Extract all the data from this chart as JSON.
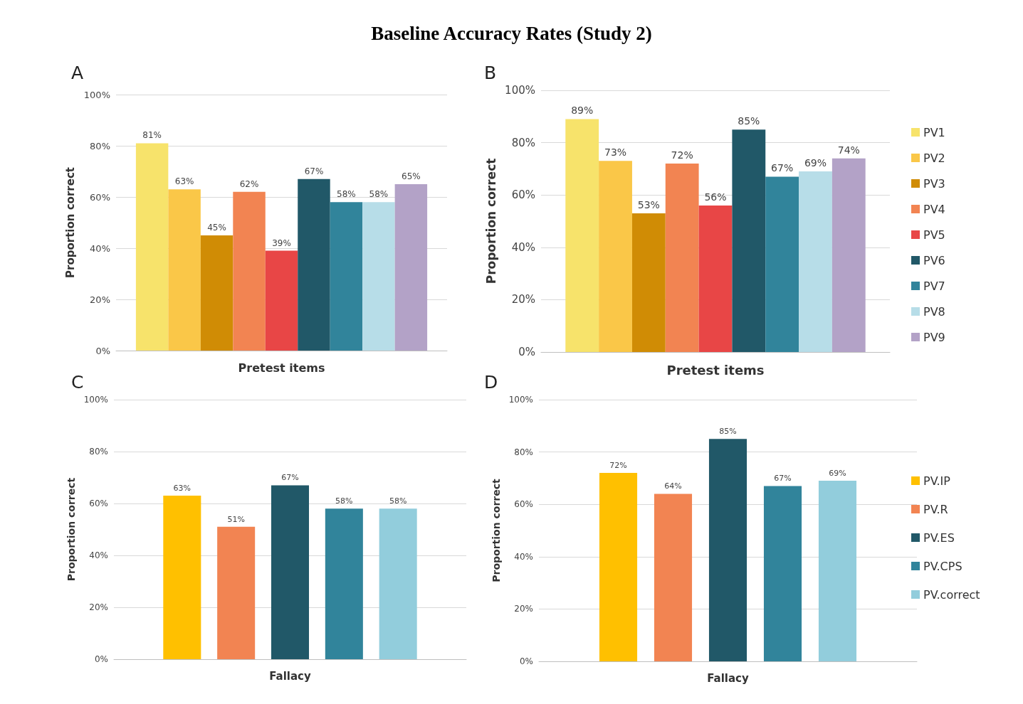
{
  "chart_data": [
    {
      "type": "bar",
      "title": "A",
      "annotations": [
        "Baseline Accuracy Rates (Study 2)"
      ],
      "xlabel": "Pretest items",
      "ylabel": "Proportion correct",
      "categories": [
        null
      ],
      "ylim": [
        0,
        100
      ],
      "yticks": [
        {
          "value": 0,
          "label": "0%"
        },
        {
          "value": 20,
          "label": "20%"
        },
        {
          "value": 40,
          "label": "40%"
        },
        {
          "value": 60,
          "label": "60%"
        },
        {
          "value": 80,
          "label": "80%"
        },
        {
          "value": 100,
          "label": "100%"
        }
      ],
      "grid": "y",
      "legend": false,
      "series": [
        {
          "color": "#f7e36b",
          "values": [
            81
          ],
          "value_labels": [
            "81%"
          ]
        },
        {
          "color": "#fac748",
          "values": [
            63
          ],
          "value_labels": [
            "63%"
          ]
        },
        {
          "color": "#d08c05",
          "values": [
            45
          ],
          "value_labels": [
            "45%"
          ]
        },
        {
          "color": "#f28452",
          "values": [
            62
          ],
          "value_labels": [
            "62%"
          ]
        },
        {
          "color": "#e84646",
          "values": [
            39
          ],
          "value_labels": [
            "39%"
          ]
        },
        {
          "color": "#215868",
          "values": [
            67
          ],
          "value_labels": [
            "67%"
          ]
        },
        {
          "color": "#31849b",
          "values": [
            58
          ],
          "value_labels": [
            "58%"
          ]
        },
        {
          "color": "#b7dde8",
          "values": [
            58
          ],
          "value_labels": [
            "58%"
          ]
        },
        {
          "color": "#b3a2c7",
          "values": [
            65
          ],
          "value_labels": [
            "65%"
          ]
        }
      ]
    },
    {
      "type": "bar",
      "title": "B",
      "xlabel": "Pretest items",
      "ylabel": "Proportion correct",
      "categories": [
        null
      ],
      "ylim": [
        0,
        100
      ],
      "yticks": [
        {
          "value": 0,
          "label": "0%"
        },
        {
          "value": 20,
          "label": "20%"
        },
        {
          "value": 40,
          "label": "40%"
        },
        {
          "value": 60,
          "label": "60%"
        },
        {
          "value": 80,
          "label": "80%"
        },
        {
          "value": 100,
          "label": "100%"
        }
      ],
      "grid": "y",
      "legend": "right",
      "series": [
        {
          "name": "PV1",
          "color": "#f7e36b",
          "values": [
            89
          ],
          "value_labels": [
            "89%"
          ]
        },
        {
          "name": "PV2",
          "color": "#fac748",
          "values": [
            73
          ],
          "value_labels": [
            "73%"
          ]
        },
        {
          "name": "PV3",
          "color": "#d08c05",
          "values": [
            53
          ],
          "value_labels": [
            "53%"
          ]
        },
        {
          "name": "PV4",
          "color": "#f28452",
          "values": [
            72
          ],
          "value_labels": [
            "72%"
          ]
        },
        {
          "name": "PV5",
          "color": "#e84646",
          "values": [
            56
          ],
          "value_labels": [
            "56%"
          ]
        },
        {
          "name": "PV6",
          "color": "#215868",
          "values": [
            85
          ],
          "value_labels": [
            "85%"
          ]
        },
        {
          "name": "PV7",
          "color": "#31849b",
          "values": [
            67
          ],
          "value_labels": [
            "67%"
          ]
        },
        {
          "name": "PV8",
          "color": "#b7dde8",
          "values": [
            69
          ],
          "value_labels": [
            "69%"
          ]
        },
        {
          "name": "PV9",
          "color": "#b3a2c7",
          "values": [
            74
          ],
          "value_labels": [
            "74%"
          ]
        }
      ]
    },
    {
      "type": "bar",
      "title": "C",
      "xlabel": "Fallacy",
      "ylabel": "Proportion correct",
      "categories": [
        null
      ],
      "ylim": [
        0,
        100
      ],
      "yticks": [
        {
          "value": 0,
          "label": "0%"
        },
        {
          "value": 20,
          "label": "20%"
        },
        {
          "value": 40,
          "label": "40%"
        },
        {
          "value": 60,
          "label": "60%"
        },
        {
          "value": 80,
          "label": "80%"
        },
        {
          "value": 100,
          "label": "100%"
        }
      ],
      "grid": "y",
      "legend": false,
      "series": [
        {
          "color": "#ffc000",
          "values": [
            63
          ],
          "value_labels": [
            "63%"
          ]
        },
        {
          "color": "#f28452",
          "values": [
            51
          ],
          "value_labels": [
            "51%"
          ]
        },
        {
          "color": "#215868",
          "values": [
            67
          ],
          "value_labels": [
            "67%"
          ]
        },
        {
          "color": "#31849b",
          "values": [
            58
          ],
          "value_labels": [
            "58%"
          ]
        },
        {
          "color": "#92cddc",
          "values": [
            58
          ],
          "value_labels": [
            "58%"
          ]
        }
      ]
    },
    {
      "type": "bar",
      "title": "D",
      "xlabel": "Fallacy",
      "ylabel": "Proportion correct",
      "categories": [
        null
      ],
      "ylim": [
        0,
        100
      ],
      "yticks": [
        {
          "value": 0,
          "label": "0%"
        },
        {
          "value": 20,
          "label": "20%"
        },
        {
          "value": 40,
          "label": "40%"
        },
        {
          "value": 60,
          "label": "60%"
        },
        {
          "value": 80,
          "label": "80%"
        },
        {
          "value": 100,
          "label": "100%"
        }
      ],
      "grid": "y",
      "legend": "right",
      "series": [
        {
          "name": "PV.IP",
          "color": "#ffc000",
          "values": [
            72
          ],
          "value_labels": [
            "72%"
          ]
        },
        {
          "name": "PV.R",
          "color": "#f28452",
          "values": [
            64
          ],
          "value_labels": [
            "64%"
          ]
        },
        {
          "name": "PV.ES",
          "color": "#215868",
          "values": [
            85
          ],
          "value_labels": [
            "85%"
          ]
        },
        {
          "name": "PV.CPS",
          "color": "#31849b",
          "values": [
            67
          ],
          "value_labels": [
            "67%"
          ]
        },
        {
          "name": "PV.correct",
          "color": "#92cddc",
          "values": [
            69
          ],
          "value_labels": [
            "69%"
          ]
        }
      ]
    }
  ]
}
